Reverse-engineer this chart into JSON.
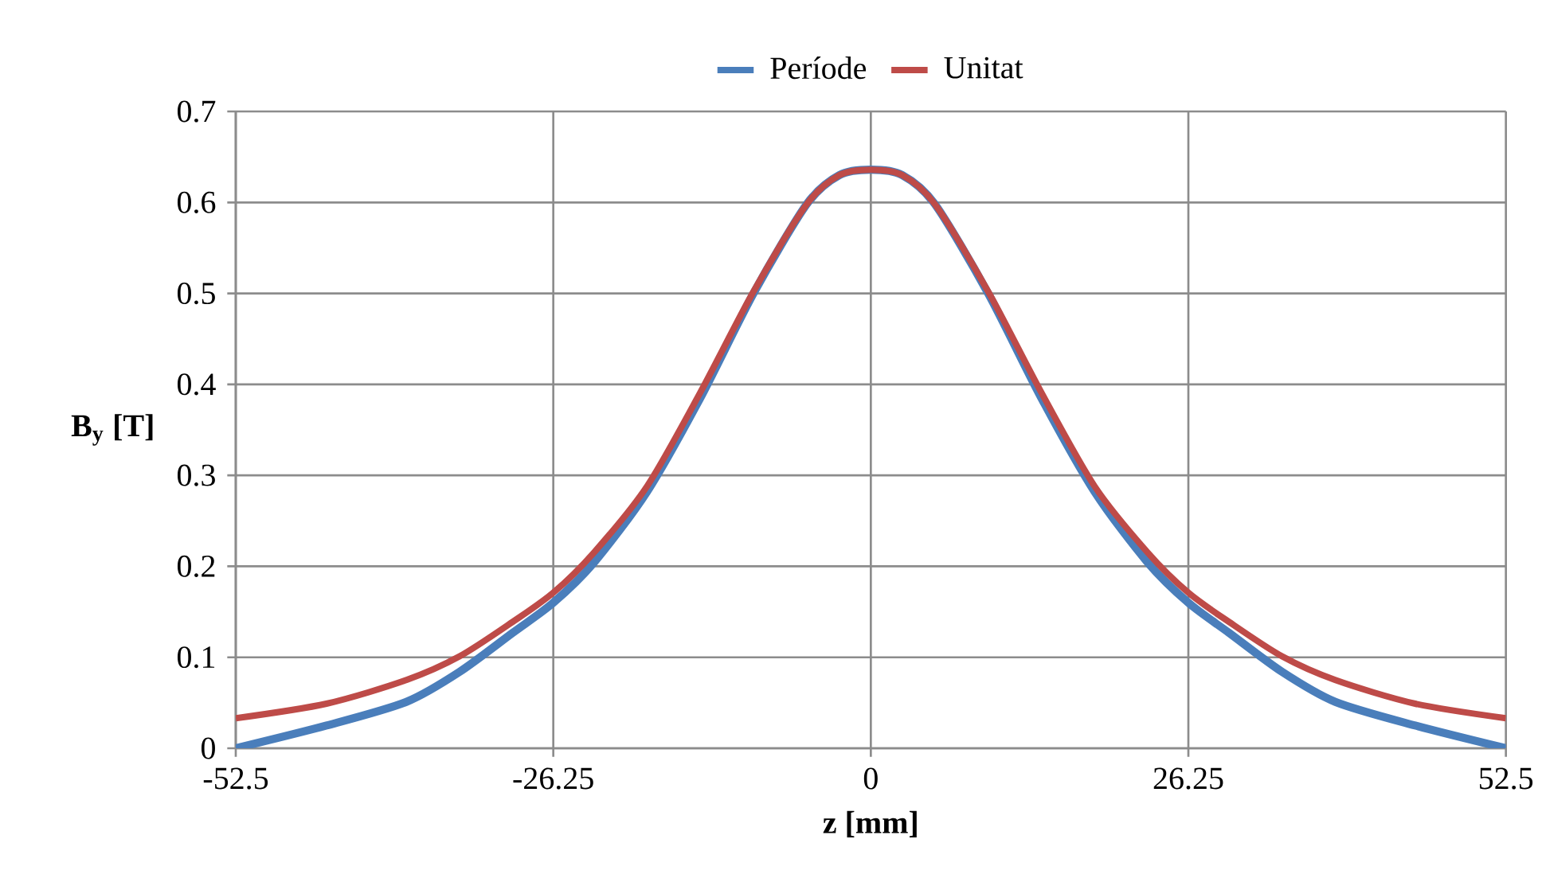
{
  "chart_data": {
    "type": "line",
    "xlabel": "z [mm]",
    "ylabel": "B$_{y}$ [T]",
    "xlim": [
      -52.5,
      52.5
    ],
    "ylim": [
      0,
      0.7
    ],
    "xticks": [
      -52.5,
      -26.25,
      0,
      26.25,
      52.5
    ],
    "yticks": [
      0,
      0.1,
      0.2,
      0.3,
      0.4,
      0.5,
      0.6,
      0.7
    ],
    "grid": true,
    "legend": "top",
    "marker": "none",
    "line_style": "solid",
    "series": [
      {
        "name": "Període",
        "color": "#4a7ebb",
        "x": [
          -52.5,
          -45,
          -38.4,
          -34,
          -29.6,
          -26.25,
          -22.9,
          -18.5,
          -14.1,
          -9.7,
          -5.3,
          -2.6,
          0,
          2.6,
          5.3,
          9.7,
          14.1,
          18.5,
          22.9,
          26.25,
          29.6,
          34,
          38.4,
          45,
          52.5
        ],
        "values": [
          0,
          0.025,
          0.051,
          0.084,
          0.127,
          0.16,
          0.204,
          0.282,
          0.385,
          0.5,
          0.598,
          0.63,
          0.636,
          0.63,
          0.598,
          0.5,
          0.385,
          0.282,
          0.204,
          0.16,
          0.127,
          0.084,
          0.051,
          0.025,
          0
        ]
      },
      {
        "name": "Unitat",
        "color": "#be4b48",
        "x": [
          -52.5,
          -45,
          -38.4,
          -34,
          -29.6,
          -26.25,
          -22.9,
          -18.5,
          -14.1,
          -9.7,
          -5.3,
          -2.6,
          0,
          2.6,
          5.3,
          9.7,
          14.1,
          18.5,
          22.9,
          26.25,
          29.6,
          34,
          38.4,
          45,
          52.5
        ],
        "values": [
          0.033,
          0.049,
          0.075,
          0.101,
          0.139,
          0.171,
          0.215,
          0.288,
          0.391,
          0.502,
          0.598,
          0.63,
          0.636,
          0.63,
          0.598,
          0.502,
          0.391,
          0.288,
          0.215,
          0.171,
          0.139,
          0.101,
          0.075,
          0.049,
          0.033
        ]
      }
    ]
  }
}
